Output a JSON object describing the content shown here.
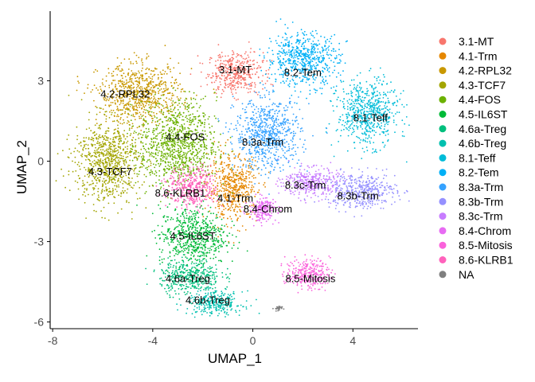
{
  "chart_data": {
    "type": "scatter",
    "xlabel": "UMAP_1",
    "ylabel": "UMAP_2",
    "xlim": [
      -8.1,
      6.6
    ],
    "ylim": [
      -6.25,
      5.6
    ],
    "x_ticks": [
      -8,
      -4,
      0,
      4
    ],
    "y_ticks": [
      -6,
      -3,
      0,
      3
    ],
    "x_tick_labels": [
      "-8",
      "-4",
      "0",
      "4"
    ],
    "y_tick_labels": [
      "-6",
      "-3",
      "0",
      "3"
    ],
    "grid": false,
    "legend_position": "right",
    "series": [
      {
        "name": "3.1-MT",
        "color": "#F8766D",
        "center": [
          -0.7,
          3.3
        ],
        "spread": [
          1.0,
          0.7
        ],
        "label_pos": [
          -0.7,
          3.4
        ]
      },
      {
        "name": "4.1-Trm",
        "color": "#E58700",
        "center": [
          -0.8,
          -1.0
        ],
        "spread": [
          0.9,
          1.1
        ],
        "label_pos": [
          -0.7,
          -1.4
        ]
      },
      {
        "name": "4.2-RPL32",
        "color": "#C99800",
        "center": [
          -4.5,
          2.5
        ],
        "spread": [
          1.5,
          1.0
        ],
        "label_pos": [
          -5.1,
          2.5
        ]
      },
      {
        "name": "4.3-TCF7",
        "color": "#A3A500",
        "center": [
          -5.8,
          0.0
        ],
        "spread": [
          1.2,
          1.4
        ],
        "label_pos": [
          -5.7,
          -0.4
        ]
      },
      {
        "name": "4.4-FOS",
        "color": "#6BB100",
        "center": [
          -3.0,
          0.6
        ],
        "spread": [
          1.4,
          1.5
        ],
        "label_pos": [
          -2.7,
          0.9
        ]
      },
      {
        "name": "4.5-IL6ST",
        "color": "#00BA38",
        "center": [
          -2.4,
          -2.8
        ],
        "spread": [
          1.2,
          1.0
        ],
        "label_pos": [
          -2.4,
          -2.8
        ]
      },
      {
        "name": "4.6a-Treg",
        "color": "#00BF7D",
        "center": [
          -2.5,
          -4.3
        ],
        "spread": [
          1.1,
          0.6
        ],
        "label_pos": [
          -2.6,
          -4.4
        ]
      },
      {
        "name": "4.6b-Treg",
        "color": "#00C0AF",
        "center": [
          -1.5,
          -5.3
        ],
        "spread": [
          1.0,
          0.4
        ],
        "label_pos": [
          -1.8,
          -5.2
        ]
      },
      {
        "name": "8.1-Teff",
        "color": "#00BCD8",
        "center": [
          4.6,
          1.8
        ],
        "spread": [
          1.1,
          1.1
        ],
        "label_pos": [
          4.7,
          1.6
        ]
      },
      {
        "name": "8.2-Tem",
        "color": "#00B0F6",
        "center": [
          2.0,
          3.8
        ],
        "spread": [
          1.3,
          0.9
        ],
        "label_pos": [
          2.0,
          3.3
        ]
      },
      {
        "name": "8.3a-Trm",
        "color": "#35A2FF",
        "center": [
          0.6,
          1.0
        ],
        "spread": [
          1.2,
          1.2
        ],
        "label_pos": [
          0.4,
          0.7
        ]
      },
      {
        "name": "8.3b-Trm",
        "color": "#9590FF",
        "center": [
          4.3,
          -1.1
        ],
        "spread": [
          1.3,
          0.6
        ],
        "label_pos": [
          4.2,
          -1.3
        ]
      },
      {
        "name": "8.3c-Trm",
        "color": "#C77CFF",
        "center": [
          2.3,
          -0.8
        ],
        "spread": [
          1.0,
          0.5
        ],
        "label_pos": [
          2.1,
          -0.9
        ]
      },
      {
        "name": "8.4-Chrom",
        "color": "#E76BF3",
        "center": [
          0.4,
          -1.8
        ],
        "spread": [
          0.5,
          0.4
        ],
        "label_pos": [
          0.6,
          -1.8
        ]
      },
      {
        "name": "8.5-Mitosis",
        "color": "#FA62DB",
        "center": [
          2.2,
          -4.2
        ],
        "spread": [
          0.8,
          0.5
        ],
        "label_pos": [
          2.3,
          -4.4
        ]
      },
      {
        "name": "8.6-KLRB1",
        "color": "#FF62BC",
        "center": [
          -2.4,
          -1.0
        ],
        "spread": [
          0.9,
          0.7
        ],
        "label_pos": [
          -2.9,
          -1.2
        ]
      },
      {
        "name": "NA",
        "color": "#7F7F7F",
        "center": [
          1.0,
          -5.5
        ],
        "spread": [
          0.15,
          0.1
        ],
        "label_pos": null
      }
    ]
  }
}
